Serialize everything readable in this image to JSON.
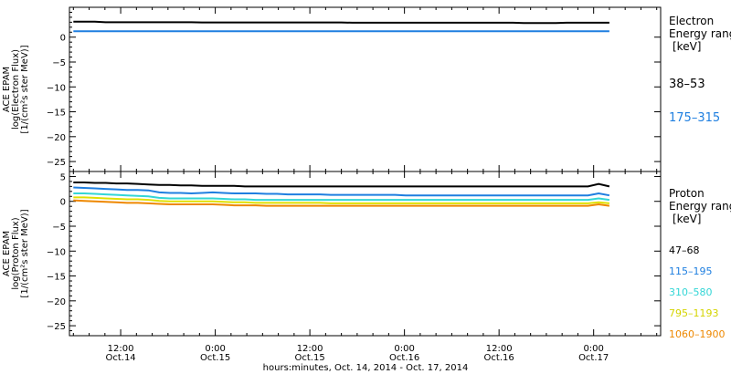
{
  "chart_data": [
    {
      "type": "line",
      "ylabel": [
        "ACE EPAM",
        "log(Electron Flux)",
        "[1/(cm²s ster MeV)]"
      ],
      "ylim": [
        -27,
        6
      ],
      "yticks": [
        0,
        -5,
        -10,
        -15,
        -20,
        -25
      ],
      "legend_title": [
        "Electron",
        "Energy range",
        "[keV]"
      ],
      "series": [
        {
          "name": "38-53",
          "color": "#000000",
          "values": [
            3.1,
            3.1,
            3.1,
            3.0,
            3.0,
            3.0,
            3.0,
            3.0,
            3.0,
            3.0,
            3.0,
            3.0,
            2.95,
            2.95,
            2.95,
            2.95,
            2.95,
            2.95,
            2.95,
            2.95,
            2.95,
            2.95,
            2.95,
            2.95,
            2.95,
            2.95,
            2.9,
            2.9,
            2.9,
            2.9,
            2.9,
            2.9,
            2.9,
            2.9,
            2.9,
            2.9,
            2.9,
            2.9,
            2.9,
            2.9,
            2.9,
            2.9,
            2.85,
            2.85,
            2.85,
            2.85,
            2.9,
            2.9,
            2.9,
            2.9,
            2.9
          ]
        },
        {
          "name": "175-315",
          "color": "#1f7fe0",
          "values": [
            1.2,
            1.2,
            1.2,
            1.2,
            1.2,
            1.2,
            1.2,
            1.2,
            1.2,
            1.2,
            1.2,
            1.2,
            1.2,
            1.2,
            1.2,
            1.2,
            1.2,
            1.2,
            1.2,
            1.2,
            1.2,
            1.2,
            1.2,
            1.2,
            1.2,
            1.2,
            1.2,
            1.2,
            1.2,
            1.2,
            1.2,
            1.2,
            1.2,
            1.2,
            1.2,
            1.2,
            1.2,
            1.2,
            1.2,
            1.2,
            1.2,
            1.2,
            1.2,
            1.2,
            1.2,
            1.2,
            1.2,
            1.2,
            1.2,
            1.2,
            1.2
          ]
        }
      ]
    },
    {
      "type": "line",
      "ylabel": [
        "ACE EPAM",
        "log(Proton Flux)",
        "[1/(cm²s ster MeV)]"
      ],
      "ylim": [
        -27,
        6
      ],
      "yticks": [
        5,
        0,
        -5,
        -10,
        -15,
        -20,
        -25
      ],
      "legend_title": [
        "Proton",
        "Energy range",
        "[keV]"
      ],
      "series": [
        {
          "name": "47-68",
          "color": "#000000",
          "values": [
            3.8,
            3.8,
            3.7,
            3.7,
            3.6,
            3.6,
            3.5,
            3.4,
            3.3,
            3.3,
            3.2,
            3.2,
            3.1,
            3.1,
            3.1,
            3.1,
            3.0,
            3.0,
            3.0,
            3.0,
            3.0,
            3.0,
            3.0,
            3.0,
            3.0,
            3.0,
            3.0,
            3.0,
            3.0,
            3.0,
            3.0,
            3.0,
            3.0,
            3.0,
            3.0,
            3.0,
            3.0,
            3.0,
            3.0,
            3.0,
            3.0,
            3.0,
            3.0,
            3.0,
            3.0,
            3.0,
            3.0,
            3.0,
            3.0,
            3.5,
            3.0
          ]
        },
        {
          "name": "115-195",
          "color": "#1f7fe0",
          "values": [
            2.8,
            2.7,
            2.6,
            2.5,
            2.4,
            2.3,
            2.3,
            2.2,
            1.8,
            1.7,
            1.7,
            1.6,
            1.7,
            1.8,
            1.7,
            1.6,
            1.6,
            1.6,
            1.5,
            1.5,
            1.4,
            1.4,
            1.4,
            1.4,
            1.3,
            1.3,
            1.3,
            1.3,
            1.3,
            1.3,
            1.3,
            1.2,
            1.2,
            1.2,
            1.2,
            1.2,
            1.2,
            1.2,
            1.2,
            1.2,
            1.2,
            1.2,
            1.2,
            1.2,
            1.2,
            1.2,
            1.2,
            1.2,
            1.2,
            1.6,
            1.2
          ]
        },
        {
          "name": "310-580",
          "color": "#33d6d6",
          "values": [
            1.6,
            1.6,
            1.5,
            1.4,
            1.3,
            1.2,
            1.1,
            1.0,
            0.7,
            0.6,
            0.6,
            0.6,
            0.6,
            0.6,
            0.5,
            0.4,
            0.4,
            0.3,
            0.3,
            0.3,
            0.3,
            0.3,
            0.3,
            0.3,
            0.3,
            0.3,
            0.3,
            0.3,
            0.3,
            0.3,
            0.3,
            0.3,
            0.3,
            0.3,
            0.3,
            0.3,
            0.3,
            0.3,
            0.3,
            0.3,
            0.3,
            0.3,
            0.3,
            0.3,
            0.3,
            0.3,
            0.3,
            0.3,
            0.3,
            0.6,
            0.3
          ]
        },
        {
          "name": "795-1193",
          "color": "#e0e000",
          "values": [
            0.8,
            0.8,
            0.7,
            0.6,
            0.5,
            0.4,
            0.4,
            0.3,
            0.1,
            0.0,
            0.0,
            0.0,
            0.0,
            0.0,
            -0.1,
            -0.2,
            -0.2,
            -0.3,
            -0.3,
            -0.3,
            -0.3,
            -0.3,
            -0.3,
            -0.3,
            -0.4,
            -0.4,
            -0.4,
            -0.4,
            -0.4,
            -0.4,
            -0.4,
            -0.4,
            -0.4,
            -0.4,
            -0.4,
            -0.4,
            -0.4,
            -0.4,
            -0.4,
            -0.4,
            -0.4,
            -0.4,
            -0.4,
            -0.4,
            -0.4,
            -0.4,
            -0.4,
            -0.4,
            -0.4,
            -0.2,
            -0.4
          ]
        },
        {
          "name": "1060-1900",
          "color": "#ee8800",
          "values": [
            0.2,
            0.1,
            0.0,
            -0.1,
            -0.2,
            -0.3,
            -0.3,
            -0.4,
            -0.5,
            -0.6,
            -0.6,
            -0.6,
            -0.6,
            -0.6,
            -0.7,
            -0.8,
            -0.8,
            -0.8,
            -0.9,
            -0.9,
            -0.9,
            -0.9,
            -0.9,
            -0.9,
            -0.9,
            -0.9,
            -0.9,
            -0.9,
            -0.9,
            -0.9,
            -0.9,
            -0.9,
            -0.9,
            -0.9,
            -0.9,
            -0.9,
            -0.9,
            -0.9,
            -0.9,
            -0.9,
            -0.9,
            -0.9,
            -0.9,
            -0.9,
            -0.9,
            -0.9,
            -0.9,
            -0.9,
            -0.9,
            -0.6,
            -0.9
          ]
        }
      ]
    }
  ],
  "x_axis": {
    "range_hours": [
      5.5,
      80.5
    ],
    "ticks": [
      {
        "hour": 12,
        "time": "12:00",
        "date": "Oct.14"
      },
      {
        "hour": 24,
        "time": "0:00",
        "date": "Oct.15"
      },
      {
        "hour": 36,
        "time": "12:00",
        "date": "Oct.15"
      },
      {
        "hour": 48,
        "time": "0:00",
        "date": "Oct.16"
      },
      {
        "hour": 60,
        "time": "12:00",
        "date": "Oct.16"
      },
      {
        "hour": 72,
        "time": "0:00",
        "date": "Oct.17"
      }
    ],
    "minor_every_hours": 2,
    "series_hours": [
      6,
      74
    ],
    "label": "hours:minutes, Oct. 14, 2014 - Oct. 17, 2014"
  }
}
